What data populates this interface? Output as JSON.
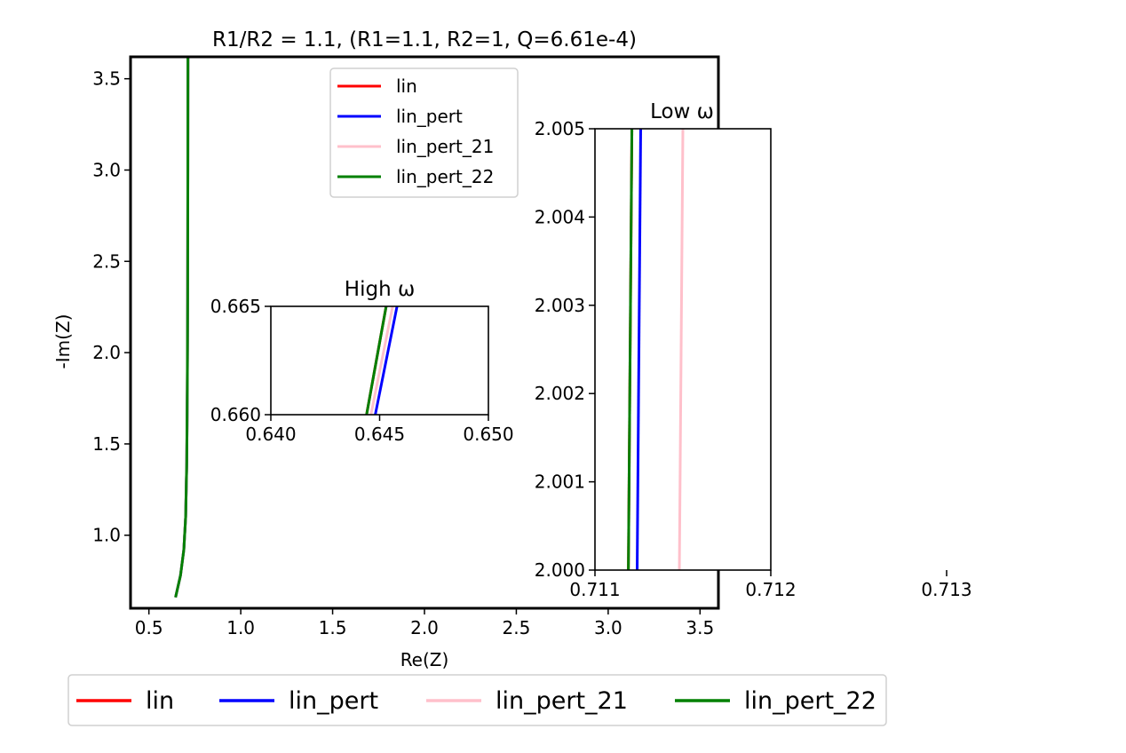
{
  "figure_title": "R1/R2 = 1.1, (R1=1.1, R2=1, Q=6.61e-4)",
  "colors": {
    "lin": "#ff0000",
    "lin_pert": "#0000ff",
    "lin_pert_21": "#ffc0cb",
    "lin_pert_22": "#008000"
  },
  "chart_data": [
    {
      "id": "main",
      "type": "line",
      "title": "R1/R2 = 1.1, (R1=1.1, R2=1, Q=6.61e-4)",
      "xlabel": "Re(Z)",
      "ylabel": "-Im(Z)",
      "xlim": [
        0.4,
        3.6
      ],
      "ylim": [
        0.6,
        3.62
      ],
      "xticks": [
        0.5,
        1.0,
        1.5,
        2.0,
        2.5,
        3.0,
        3.5
      ],
      "xtick_labels": [
        "0.5",
        "1.0",
        "1.5",
        "2.0",
        "2.5",
        "3.0",
        "3.5"
      ],
      "yticks": [
        1.0,
        1.5,
        2.0,
        2.5,
        3.0,
        3.5
      ],
      "ytick_labels": [
        "1.0",
        "1.5",
        "2.0",
        "2.5",
        "3.0",
        "3.5"
      ],
      "grid": false,
      "legend": {
        "placement": "upper-center",
        "entries": [
          "lin",
          "lin_pert",
          "lin_pert_21",
          "lin_pert_22"
        ]
      },
      "series": [
        {
          "name": "lin",
          "color": "#ff0000",
          "x": [
            0.645,
            0.672,
            0.69,
            0.7,
            0.706,
            0.709,
            0.711,
            0.712,
            0.7125
          ],
          "y": [
            0.66,
            0.78,
            0.92,
            1.1,
            1.4,
            1.8,
            2.3,
            3.0,
            3.62
          ]
        },
        {
          "name": "lin_pert",
          "color": "#0000ff",
          "x": [
            0.645,
            0.672,
            0.69,
            0.7,
            0.706,
            0.709,
            0.711,
            0.712,
            0.7125
          ],
          "y": [
            0.66,
            0.78,
            0.92,
            1.1,
            1.4,
            1.8,
            2.3,
            3.0,
            3.62
          ]
        },
        {
          "name": "lin_pert_21",
          "color": "#ffc0cb",
          "x": [
            0.645,
            0.672,
            0.69,
            0.7,
            0.706,
            0.709,
            0.711,
            0.712,
            0.7125
          ],
          "y": [
            0.66,
            0.78,
            0.92,
            1.1,
            1.4,
            1.8,
            2.3,
            3.0,
            3.62
          ]
        },
        {
          "name": "lin_pert_22",
          "color": "#008000",
          "x": [
            0.645,
            0.672,
            0.69,
            0.7,
            0.706,
            0.709,
            0.711,
            0.712,
            0.7125
          ],
          "y": [
            0.66,
            0.78,
            0.92,
            1.1,
            1.4,
            1.8,
            2.3,
            3.0,
            3.62
          ]
        }
      ]
    },
    {
      "id": "inset_high",
      "type": "line",
      "title": "High ω",
      "xlim": [
        0.64,
        0.65
      ],
      "ylim": [
        0.66,
        0.665
      ],
      "xticks": [
        0.64,
        0.645,
        0.65
      ],
      "xtick_labels": [
        "0.640",
        "0.645",
        "0.650"
      ],
      "yticks": [
        0.66,
        0.665
      ],
      "ytick_labels": [
        "0.660",
        "0.665"
      ],
      "series": [
        {
          "name": "lin",
          "color": "#ff0000",
          "x": [
            0.6444,
            0.6453
          ],
          "y": [
            0.66,
            0.665
          ]
        },
        {
          "name": "lin_pert",
          "color": "#0000ff",
          "x": [
            0.6448,
            0.6458
          ],
          "y": [
            0.66,
            0.665
          ]
        },
        {
          "name": "lin_pert_21",
          "color": "#ffc0cb",
          "x": [
            0.6446,
            0.6456
          ],
          "y": [
            0.66,
            0.665
          ]
        },
        {
          "name": "lin_pert_22",
          "color": "#008000",
          "x": [
            0.6444,
            0.6453
          ],
          "y": [
            0.66,
            0.665
          ]
        }
      ]
    },
    {
      "id": "inset_low",
      "type": "line",
      "title": "Low ω",
      "xlim": [
        0.711,
        0.712
      ],
      "ylim": [
        2.0,
        2.005
      ],
      "xticks": [
        0.711,
        0.712,
        0.713
      ],
      "xtick_labels": [
        "0.711",
        "0.712",
        "0.713"
      ],
      "yticks": [
        2.0,
        2.001,
        2.002,
        2.003,
        2.004,
        2.005
      ],
      "ytick_labels": [
        "2.000",
        "2.001",
        "2.002",
        "2.003",
        "2.004",
        "2.005"
      ],
      "series": [
        {
          "name": "lin",
          "color": "#ff0000",
          "x": [
            0.71119,
            0.71121
          ],
          "y": [
            2.0,
            2.005
          ]
        },
        {
          "name": "lin_pert",
          "color": "#0000ff",
          "x": [
            0.71124,
            0.71126
          ],
          "y": [
            2.0,
            2.005
          ]
        },
        {
          "name": "lin_pert_21",
          "color": "#ffc0cb",
          "x": [
            0.71148,
            0.7115
          ],
          "y": [
            2.0,
            2.005
          ]
        },
        {
          "name": "lin_pert_22",
          "color": "#008000",
          "x": [
            0.71119,
            0.71121
          ],
          "y": [
            2.0,
            2.005
          ]
        }
      ]
    }
  ],
  "bottom_legend": {
    "entries": [
      "lin",
      "lin_pert",
      "lin_pert_21",
      "lin_pert_22"
    ]
  }
}
